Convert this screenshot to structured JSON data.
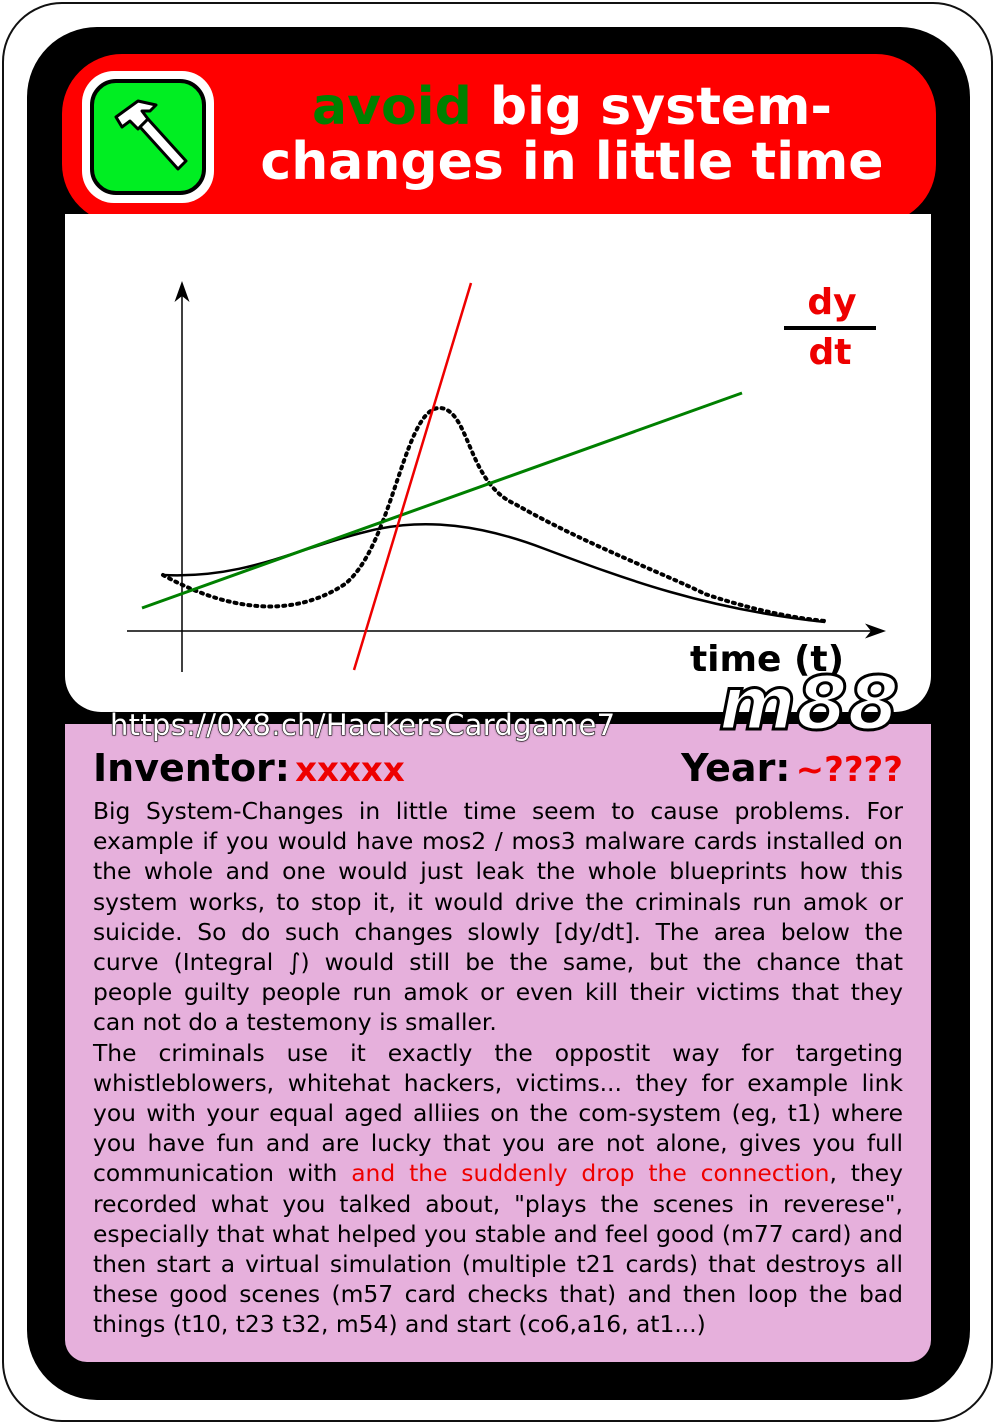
{
  "card": {
    "title_highlight": "avoid",
    "title_line1_rest": "big system-",
    "title_line2": "changes in little time",
    "url": "https://0x8.ch/HackersCardgame7",
    "card_id": "m88",
    "icon": "hammer-icon"
  },
  "chart_data": {
    "type": "line",
    "xlabel": "time (t)",
    "annotation": {
      "numerator": "dy",
      "denominator": "dt"
    },
    "series": [
      {
        "style": "solid",
        "color": "#000000"
      },
      {
        "style": "dotted",
        "color": "#000000"
      },
      {
        "style": "solid",
        "color": "#008000"
      },
      {
        "style": "solid",
        "color": "#ee0000"
      }
    ]
  },
  "meta": {
    "inventor_label": "Inventor:",
    "inventor_value": "xxxxx",
    "year_label": "Year:",
    "year_value": "~????"
  },
  "description": {
    "p1": "Big System-Changes in little time seem to cause problems. For example if you would have mos2 / mos3 malware cards installed on the whole and one would just leak the whole blueprints how this system works, to stop it, it would drive the criminals run amok or suicide. So do such changes slowly [dy/dt]. The area below the curve (Integral ∫) would still be the same, but the chance that people guilty people run amok or even kill their victims that they can not do a testemony is smaller.",
    "p2_before": "The criminals use it exactly the oppostit way for targeting whistleblowers, whitehat hackers, victims... they for example link you with your equal aged alliies on the com-system (eg, t1) where you have fun and are lucky that you are not alone, gives you full communication with ",
    "p2_highlight": "and the suddenly drop the connection",
    "p2_after": ", they recorded what you talked about, \"plays the scenes in reverese\", especially that what helped you stable and feel good (m77 card) and then start a virtual simulation (multiple t21 cards) that destroys all these good scenes (m57 card checks that) and then loop the bad things (t10, t23 t32, m54) and start (co6,a16, at1...)"
  }
}
